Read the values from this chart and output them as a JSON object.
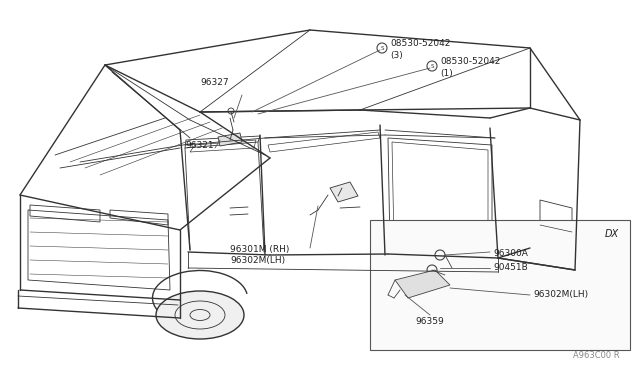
{
  "bg_color": "#ffffff",
  "fig_width": 6.4,
  "fig_height": 3.72,
  "dpi": 100,
  "car_color": "#333333",
  "label_color": "#222222",
  "font_size": 7.0,
  "font_family": "DejaVu Sans",
  "watermark": "A963C00 R",
  "screw_symbol": "S",
  "labels": {
    "s1_text": "08530-52042",
    "s1_sub": "(3)",
    "s2_text": "08530-52042",
    "s2_sub": "(1)",
    "p96327": "96327",
    "p96321": "96321",
    "p96301": "96301M (RH)",
    "p96302": "96302M(LH)",
    "dx": "DX",
    "p96300A": "96300A",
    "p90451B": "90451B",
    "p96302M": "96302M(LH)",
    "p96359": "96359",
    "wm": "A963C00 R"
  }
}
